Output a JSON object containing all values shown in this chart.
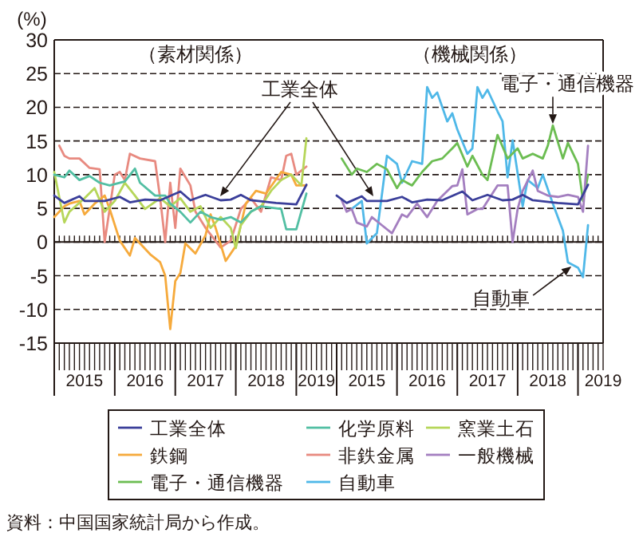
{
  "chart_data": [
    {
      "type": "line",
      "title": "（素材関係）",
      "ylabel": "(%)",
      "xlim": [
        "2015-01",
        "2019-09"
      ],
      "ylim": [
        -15,
        30
      ],
      "yticks": [
        -15,
        -10,
        -5,
        0,
        5,
        10,
        15,
        20,
        25,
        30
      ],
      "xticks": [
        {
          "value": "2015-01",
          "label": null
        },
        {
          "value": "2015-07",
          "label": "2015"
        },
        {
          "value": "2016-01",
          "label": null
        },
        {
          "value": "2016-07",
          "label": "2016"
        },
        {
          "value": "2017-01",
          "label": null
        },
        {
          "value": "2017-07",
          "label": "2017"
        },
        {
          "value": "2018-01",
          "label": null
        },
        {
          "value": "2018-07",
          "label": "2018"
        },
        {
          "value": "2019-01",
          "label": null
        },
        {
          "value": "2019-05",
          "label": "2019"
        }
      ],
      "grid": "y",
      "legend": "bottom",
      "ref_lines": [
        {
          "axis": "y",
          "value": 0
        }
      ],
      "annotations": [
        "工業全体",
        "資料：中国国家統計局から作成。"
      ],
      "series": [
        {
          "name": "工業全体",
          "color": "#3b3f9a",
          "x": [
            "2015-01",
            "2015-03",
            "2015-06",
            "2015-07",
            "2015-11",
            "2016-02",
            "2016-04",
            "2016-07",
            "2016-10",
            "2017-02",
            "2017-04",
            "2017-07",
            "2017-10",
            "2017-12",
            "2018-02",
            "2018-04",
            "2018-09",
            "2019-01",
            "2019-03"
          ],
          "values": [
            6.9,
            5.8,
            6.8,
            6.1,
            6.1,
            6.7,
            5.9,
            6.3,
            6.2,
            7.5,
            6.2,
            7.0,
            6.2,
            6.3,
            7.0,
            6.2,
            5.8,
            5.6,
            8.5
          ]
        },
        {
          "name": "化学原料",
          "color": "#52bfa3",
          "x": [
            "2015-01",
            "2015-03",
            "2015-04",
            "2015-06",
            "2015-08",
            "2015-10",
            "2015-12",
            "2016-03",
            "2016-05",
            "2016-06",
            "2016-09",
            "2016-11",
            "2016-12",
            "2017-02",
            "2017-04",
            "2017-06",
            "2017-08",
            "2017-10",
            "2017-12",
            "2018-02",
            "2018-04",
            "2018-06",
            "2018-10",
            "2018-11",
            "2019-01",
            "2019-03"
          ],
          "values": [
            10.0,
            9.6,
            10.6,
            9.2,
            9.8,
            8.8,
            8.4,
            9.0,
            10.9,
            8.8,
            6.9,
            6.9,
            5.7,
            4.5,
            2.9,
            4.5,
            3.7,
            3.3,
            3.7,
            2.9,
            4.5,
            5.3,
            4.9,
            1.9,
            1.9,
            7.2
          ]
        },
        {
          "name": "窯業土石",
          "color": "#b6d65a",
          "x": [
            "2015-01",
            "2015-03",
            "2015-04",
            "2015-07",
            "2015-09",
            "2015-11",
            "2016-01",
            "2016-03",
            "2016-05",
            "2016-07",
            "2016-10",
            "2016-12",
            "2017-02",
            "2017-04",
            "2017-06",
            "2017-08",
            "2017-10",
            "2017-12",
            "2018-01",
            "2018-02",
            "2018-04",
            "2018-06",
            "2018-08",
            "2018-10",
            "2018-12",
            "2019-02",
            "2019-03"
          ],
          "values": [
            10.4,
            2.9,
            4.5,
            6.5,
            8.0,
            4.5,
            6.1,
            8.8,
            6.9,
            4.9,
            6.5,
            5.3,
            6.5,
            4.5,
            5.3,
            2.1,
            3.7,
            2.1,
            -0.9,
            2.5,
            4.5,
            5.3,
            7.6,
            9.2,
            10.0,
            8.4,
            15.4
          ]
        },
        {
          "name": "鉄鋼",
          "color": "#f6aa3c",
          "x": [
            "2015-01",
            "2015-03",
            "2015-04",
            "2015-06",
            "2015-07",
            "2015-09",
            "2015-11",
            "2015-12",
            "2016-02",
            "2016-04",
            "2016-05",
            "2016-08",
            "2016-10",
            "2016-11",
            "2016-12",
            "2017-01",
            "2017-02",
            "2017-03",
            "2017-05",
            "2017-07",
            "2017-08",
            "2017-09",
            "2017-11",
            "2018-01",
            "2018-03",
            "2018-05",
            "2018-07",
            "2018-10",
            "2018-12",
            "2019-01",
            "2019-03"
          ],
          "values": [
            3.7,
            5.3,
            5.7,
            6.1,
            4.1,
            5.7,
            6.9,
            4.9,
            0.2,
            -2.0,
            0.6,
            -1.8,
            -3.0,
            -5.0,
            -12.9,
            -5.8,
            -4.6,
            -0.2,
            -1.7,
            1.0,
            4.1,
            2.1,
            -2.8,
            -0.6,
            5.7,
            7.6,
            7.2,
            10.4,
            10.0,
            8.4,
            8.4
          ]
        },
        {
          "name": "非鉄金属",
          "color": "#e88a80",
          "x": [
            "2015-02",
            "2015-03",
            "2015-04",
            "2015-06",
            "2015-08",
            "2015-10",
            "2015-11",
            "2016-01",
            "2016-02",
            "2016-03",
            "2016-04",
            "2016-06",
            "2016-09",
            "2016-10",
            "2016-11",
            "2016-12",
            "2017-01",
            "2017-02",
            "2017-04",
            "2017-05",
            "2017-07",
            "2017-10",
            "2017-12",
            "2018-02",
            "2018-04",
            "2018-06",
            "2018-08",
            "2018-10",
            "2018-11",
            "2018-12",
            "2019-01",
            "2019-03"
          ],
          "values": [
            14.3,
            12.8,
            12.4,
            12.4,
            11.0,
            10.8,
            0.0,
            10.0,
            10.4,
            9.2,
            13.1,
            12.4,
            12.0,
            6.5,
            0.0,
            8.8,
            2.1,
            10.9,
            8.4,
            4.5,
            2.1,
            -0.8,
            0.2,
            4.9,
            6.5,
            4.5,
            9.6,
            9.2,
            12.8,
            13.1,
            10.0,
            11.2
          ]
        }
      ]
    },
    {
      "type": "line",
      "title": "（機械関係）",
      "xlim": [
        "2015-01",
        "2019-06"
      ],
      "ylim": [
        -15,
        30
      ],
      "yticks": [
        -15,
        -10,
        -5,
        0,
        5,
        10,
        15,
        20,
        25,
        30
      ],
      "tick_labels": "x",
      "xticks": [
        {
          "value": "2015-01",
          "label": null
        },
        {
          "value": "2015-07",
          "label": "2015"
        },
        {
          "value": "2016-01",
          "label": null
        },
        {
          "value": "2016-07",
          "label": "2016"
        },
        {
          "value": "2017-01",
          "label": null
        },
        {
          "value": "2017-07",
          "label": "2017"
        },
        {
          "value": "2018-01",
          "label": null
        },
        {
          "value": "2018-07",
          "label": "2018"
        },
        {
          "value": "2019-01",
          "label": null
        },
        {
          "value": "2019-06",
          "label": "2019"
        }
      ],
      "grid": "y",
      "legend": "bottom",
      "ref_lines": [
        {
          "axis": "y",
          "value": 0
        }
      ],
      "annotations": [
        {
          "text": "電子・通信機器",
          "x": "2018-08",
          "y": 17.3
        },
        {
          "text": "自動車",
          "x": "2018-12",
          "y": -3.4
        }
      ],
      "series": [
        {
          "name": "工業全体",
          "color": "#3b3f9a",
          "x": [
            "2015-01",
            "2015-03",
            "2015-06",
            "2015-07",
            "2015-11",
            "2016-02",
            "2016-04",
            "2016-07",
            "2016-10",
            "2017-02",
            "2017-04",
            "2017-07",
            "2017-10",
            "2017-12",
            "2018-02",
            "2018-04",
            "2018-09",
            "2019-01",
            "2019-03"
          ],
          "values": [
            6.9,
            5.8,
            6.8,
            6.1,
            6.1,
            6.7,
            5.9,
            6.3,
            6.2,
            7.5,
            6.2,
            7.0,
            6.2,
            6.3,
            7.0,
            6.2,
            5.8,
            5.6,
            8.5
          ]
        },
        {
          "name": "一般機械",
          "color": "#a47fc0",
          "x": [
            "2015-02",
            "2015-03",
            "2015-04",
            "2015-05",
            "2015-07",
            "2015-08",
            "2015-10",
            "2015-12",
            "2016-02",
            "2016-03",
            "2016-05",
            "2016-07",
            "2016-09",
            "2016-12",
            "2017-01",
            "2017-02",
            "2017-03",
            "2017-05",
            "2017-06",
            "2017-09",
            "2017-11",
            "2017-12",
            "2018-01",
            "2018-02",
            "2018-04",
            "2018-05",
            "2018-07",
            "2018-09",
            "2018-11",
            "2019-01",
            "2019-02",
            "2019-03"
          ],
          "values": [
            6.2,
            4.5,
            4.9,
            2.9,
            2.3,
            3.7,
            2.5,
            1.3,
            4.1,
            3.7,
            5.7,
            3.7,
            6.1,
            8.3,
            8.4,
            10.8,
            4.1,
            4.9,
            4.9,
            8.4,
            8.4,
            0.0,
            4.9,
            7.6,
            10.6,
            7.6,
            6.9,
            6.7,
            7.0,
            6.7,
            4.5,
            14.3
          ]
        },
        {
          "name": "電子・通信機器",
          "color": "#6cbd52",
          "x": [
            "2015-02",
            "2015-04",
            "2015-05",
            "2015-07",
            "2015-09",
            "2015-11",
            "2016-01",
            "2016-02",
            "2016-04",
            "2016-06",
            "2016-08",
            "2016-10",
            "2016-12",
            "2017-01",
            "2017-03",
            "2017-04",
            "2017-06",
            "2017-07",
            "2017-09",
            "2017-11",
            "2018-01",
            "2018-02",
            "2018-04",
            "2018-06",
            "2018-07",
            "2018-08",
            "2018-10",
            "2018-11",
            "2019-01",
            "2019-02",
            "2019-03"
          ],
          "values": [
            12.4,
            10.0,
            10.9,
            10.4,
            11.6,
            10.8,
            8.0,
            9.2,
            8.4,
            10.4,
            12.0,
            12.4,
            13.9,
            14.7,
            11.2,
            12.8,
            10.0,
            9.2,
            15.9,
            12.4,
            13.9,
            12.4,
            13.1,
            12.4,
            14.3,
            17.3,
            12.4,
            14.7,
            11.6,
            6.1,
            10.0
          ]
        },
        {
          "name": "自動車",
          "color": "#4fb8e8",
          "x": [
            "2015-04",
            "2015-06",
            "2015-07",
            "2015-09",
            "2015-11",
            "2016-01",
            "2016-02",
            "2016-04",
            "2016-06",
            "2016-07",
            "2016-08",
            "2016-09",
            "2016-11",
            "2016-12",
            "2017-01",
            "2017-03",
            "2017-04",
            "2017-05",
            "2017-06",
            "2017-07",
            "2017-09",
            "2017-10",
            "2017-11",
            "2017-12",
            "2018-02",
            "2018-03",
            "2018-05",
            "2018-06",
            "2018-08",
            "2018-10",
            "2018-11",
            "2019-01",
            "2019-02",
            "2019-03"
          ],
          "values": [
            4.9,
            6.1,
            -0.2,
            1.3,
            12.8,
            11.6,
            8.8,
            12.0,
            11.6,
            23.0,
            21.4,
            22.2,
            17.9,
            19.1,
            16.7,
            13.1,
            13.9,
            23.0,
            21.4,
            22.6,
            19.4,
            17.9,
            9.6,
            15.1,
            5.3,
            9.2,
            8.0,
            10.0,
            5.7,
            1.7,
            -3.0,
            -3.8,
            -5.2,
            2.5
          ]
        }
      ]
    }
  ]
}
